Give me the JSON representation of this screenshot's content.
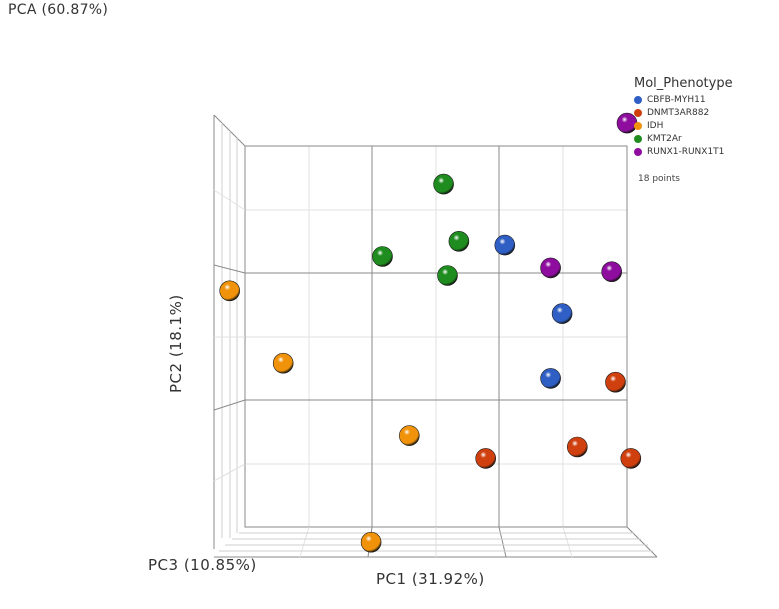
{
  "title": "PCA (60.87%)",
  "chart_data": {
    "type": "scatter",
    "xlabel": "PC1 (31.92%)",
    "ylabel": "PC2 (18.1%)",
    "zlabel": "PC3 (10.85%)",
    "legend": {
      "title": "Mol_Phenotype",
      "placement": "top-right",
      "entries": [
        {
          "name": "CBFB-MYH11",
          "color": "#2f5fc4"
        },
        {
          "name": "DNMT3AR882",
          "color": "#d0400f"
        },
        {
          "name": "IDH",
          "color": "#f0920a"
        },
        {
          "name": "KMT2Ar",
          "color": "#1e8c1e"
        },
        {
          "name": "RUNX1-RUNX1T1",
          "color": "#8e0c9e"
        }
      ]
    },
    "points_label": "18 points",
    "series": [
      {
        "name": "CBFB-MYH11",
        "points": [
          {
            "x": 0.68,
            "y": 0.74
          },
          {
            "x": 0.83,
            "y": 0.56
          },
          {
            "x": 0.8,
            "y": 0.39
          }
        ]
      },
      {
        "name": "DNMT3AR882",
        "points": [
          {
            "x": 0.97,
            "y": 0.38
          },
          {
            "x": 0.87,
            "y": 0.21
          },
          {
            "x": 1.01,
            "y": 0.18
          },
          {
            "x": 0.63,
            "y": 0.18
          }
        ]
      },
      {
        "name": "IDH",
        "points": [
          {
            "x": -0.04,
            "y": 0.62
          },
          {
            "x": 0.1,
            "y": 0.43
          },
          {
            "x": 0.43,
            "y": 0.24
          },
          {
            "x": 0.33,
            "y": -0.04
          }
        ]
      },
      {
        "name": "KMT2Ar",
        "points": [
          {
            "x": 0.52,
            "y": 0.9
          },
          {
            "x": 0.56,
            "y": 0.75
          },
          {
            "x": 0.36,
            "y": 0.71
          },
          {
            "x": 0.53,
            "y": 0.66
          }
        ]
      },
      {
        "name": "RUNX1-RUNX1T1",
        "points": [
          {
            "x": 1.0,
            "y": 1.06
          },
          {
            "x": 0.8,
            "y": 0.68
          },
          {
            "x": 0.96,
            "y": 0.67
          }
        ]
      }
    ]
  }
}
